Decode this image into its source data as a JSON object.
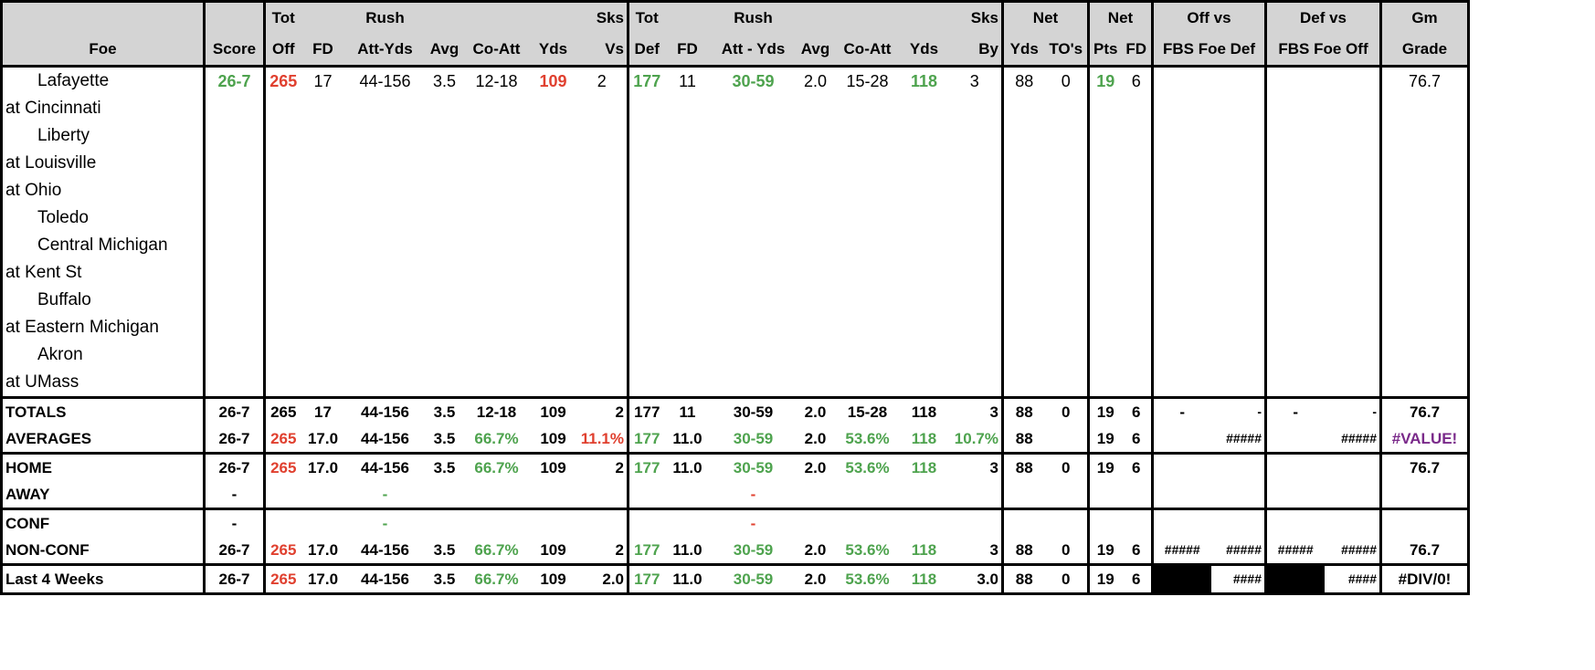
{
  "header": {
    "row1": [
      "",
      "",
      "Tot",
      "",
      "Rush",
      "",
      "",
      "",
      "Sks",
      "Tot",
      "",
      "Rush",
      "",
      "",
      "",
      "Sks",
      "Net",
      "",
      "Net",
      "",
      "Off vs",
      "Def vs",
      "Gm"
    ],
    "row2": [
      "Foe",
      "Score",
      "Off",
      "FD",
      "Att-Yds",
      "Avg",
      "Co-Att",
      "Yds",
      "Vs",
      "Def",
      "FD",
      "Att - Yds",
      "Avg",
      "Co-Att",
      "Yds",
      "By",
      "Yds",
      "TO's",
      "Pts",
      "FD",
      "FBS Foe Def",
      "FBS Foe Off",
      "Grade"
    ]
  },
  "games": [
    {
      "foe": "Lafayette",
      "indent": true,
      "score": "26-7",
      "tot_off": "265",
      "fd": "17",
      "rush_att_yds": "44-156",
      "avg": "3.5",
      "co_att": "12-18",
      "pass_yds": "109",
      "sks_vs": "2",
      "tot_def": "177",
      "def_fd": "11",
      "def_rush": "30-59",
      "def_avg": "2.0",
      "def_co_att": "15-28",
      "def_yds": "118",
      "sks_by": "3",
      "net_yds": "88",
      "net_to": "0",
      "net_pts": "19",
      "net_fd": "6",
      "grade": "76.7"
    },
    {
      "foe": "at Cincinnati",
      "indent": false
    },
    {
      "foe": "Liberty",
      "indent": true
    },
    {
      "foe": "at Louisville",
      "indent": false
    },
    {
      "foe": "at Ohio",
      "indent": false
    },
    {
      "foe": "Toledo",
      "indent": true
    },
    {
      "foe": "Central Michigan",
      "indent": true
    },
    {
      "foe": "at Kent St",
      "indent": false
    },
    {
      "foe": "Buffalo",
      "indent": true
    },
    {
      "foe": "at Eastern Michigan",
      "indent": false
    },
    {
      "foe": "Akron",
      "indent": true
    },
    {
      "foe": "at UMass",
      "indent": false
    }
  ],
  "totals": {
    "label": "TOTALS",
    "score": "26-7",
    "tot_off": "265",
    "fd": "17",
    "rush": "44-156",
    "avg": "3.5",
    "co_att": "12-18",
    "yds": "109",
    "sks": "2",
    "tot_def": "177",
    "def_fd": "11",
    "def_rush": "30-59",
    "def_avg": "2.0",
    "def_co_att": "15-28",
    "def_yds": "118",
    "sks_by": "3",
    "net_yds": "88",
    "net_to": "0",
    "net_pts": "19",
    "net_fd": "6",
    "off_a": "-",
    "off_b": "-",
    "def_a": "-",
    "def_b": "-",
    "grade": "76.7"
  },
  "averages": {
    "label": "AVERAGES",
    "score": "26-7",
    "tot_off": "265",
    "fd": "17.0",
    "rush": "44-156",
    "avg": "3.5",
    "co_att": "66.7%",
    "yds": "109",
    "sks": "11.1%",
    "tot_def": "177",
    "def_fd": "11.0",
    "def_rush": "30-59",
    "def_avg": "2.0",
    "def_co_att": "53.6%",
    "def_yds": "118",
    "sks_by": "10.7%",
    "net_yds": "88",
    "net_pts": "19",
    "net_fd": "6",
    "off_b": "#####",
    "def_b": "#####",
    "grade": "#VALUE!"
  },
  "home": {
    "label": "HOME",
    "score": "26-7",
    "tot_off": "265",
    "fd": "17.0",
    "rush": "44-156",
    "avg": "3.5",
    "co_att": "66.7%",
    "yds": "109",
    "sks": "2",
    "tot_def": "177",
    "def_fd": "11.0",
    "def_rush": "30-59",
    "def_avg": "2.0",
    "def_co_att": "53.6%",
    "def_yds": "118",
    "sks_by": "3",
    "net_yds": "88",
    "net_to": "0",
    "net_pts": "19",
    "net_fd": "6",
    "grade": "76.7"
  },
  "away": {
    "label": "AWAY",
    "score": "-",
    "rush": "-",
    "def_rush": "-"
  },
  "conf": {
    "label": "CONF",
    "score": "-",
    "rush": "-",
    "def_rush": "-"
  },
  "nonconf": {
    "label": "NON-CONF",
    "score": "26-7",
    "tot_off": "265",
    "fd": "17.0",
    "rush": "44-156",
    "avg": "3.5",
    "co_att": "66.7%",
    "yds": "109",
    "sks": "2",
    "tot_def": "177",
    "def_fd": "11.0",
    "def_rush": "30-59",
    "def_avg": "2.0",
    "def_co_att": "53.6%",
    "def_yds": "118",
    "sks_by": "3",
    "net_yds": "88",
    "net_to": "0",
    "net_pts": "19",
    "net_fd": "6",
    "off_a": "#####",
    "off_b": "#####",
    "def_a": "#####",
    "def_b": "#####",
    "grade": "76.7"
  },
  "last4": {
    "label": "Last 4 Weeks",
    "score": "26-7",
    "tot_off": "265",
    "fd": "17.0",
    "rush": "44-156",
    "avg": "3.5",
    "co_att": "66.7%",
    "yds": "109",
    "sks": "2.0",
    "tot_def": "177",
    "def_fd": "11.0",
    "def_rush": "30-59",
    "def_avg": "2.0",
    "def_co_att": "53.6%",
    "def_yds": "118",
    "sks_by": "3.0",
    "net_yds": "88",
    "net_to": "0",
    "net_pts": "19",
    "net_fd": "6",
    "off_b": "####",
    "def_b": "####",
    "grade": "#DIV/0!"
  },
  "colors": {
    "good": "#4ea34e",
    "bad": "#e0402f",
    "error": "#7a2a8a",
    "header_bg": "#d4d4d4",
    "marker": "#f7e35a"
  }
}
